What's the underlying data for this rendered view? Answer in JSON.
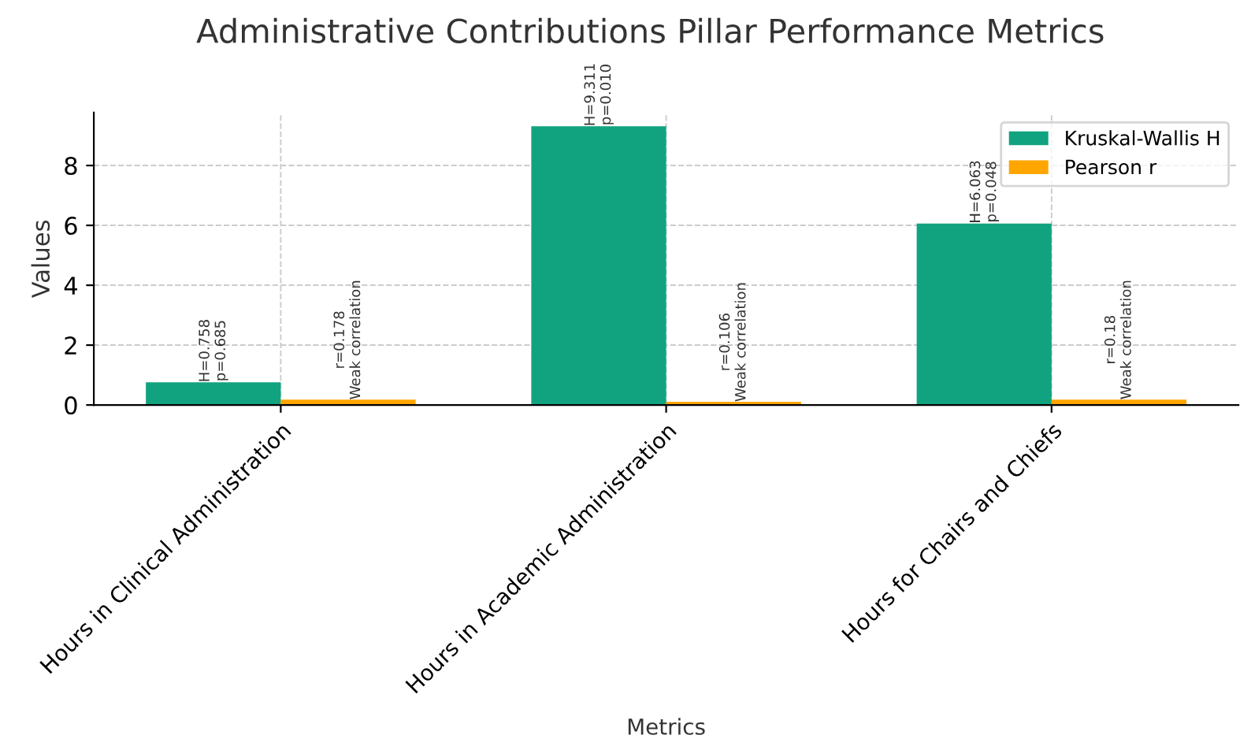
{
  "chart_data": {
    "type": "bar",
    "title": "Administrative Contributions Pillar Performance Metrics",
    "xlabel": "Metrics",
    "ylabel": "Values",
    "categories": [
      "Hours in Clinical Administration",
      "Hours in Academic Administration",
      "Hours for Chairs and Chiefs"
    ],
    "series": [
      {
        "name": "Kruskal-Wallis H",
        "color": "#11a37f",
        "values": [
          0.758,
          9.311,
          6.063
        ],
        "value_labels": [
          "H=0.758\np=0.685",
          "H=9.311\np=0.010",
          "H=6.063\np=0.048"
        ]
      },
      {
        "name": "Pearson r",
        "color": "#ffa500",
        "values": [
          0.178,
          0.106,
          0.18
        ],
        "value_labels": [
          "r=0.178\nWeak correlation",
          "r=0.106\nWeak correlation",
          "r=0.18\nWeak correlation"
        ]
      }
    ],
    "ylim": [
      0,
      9.77
    ],
    "yticks": [
      0,
      2,
      4,
      6,
      8
    ],
    "grid": true,
    "legend": "top right"
  }
}
